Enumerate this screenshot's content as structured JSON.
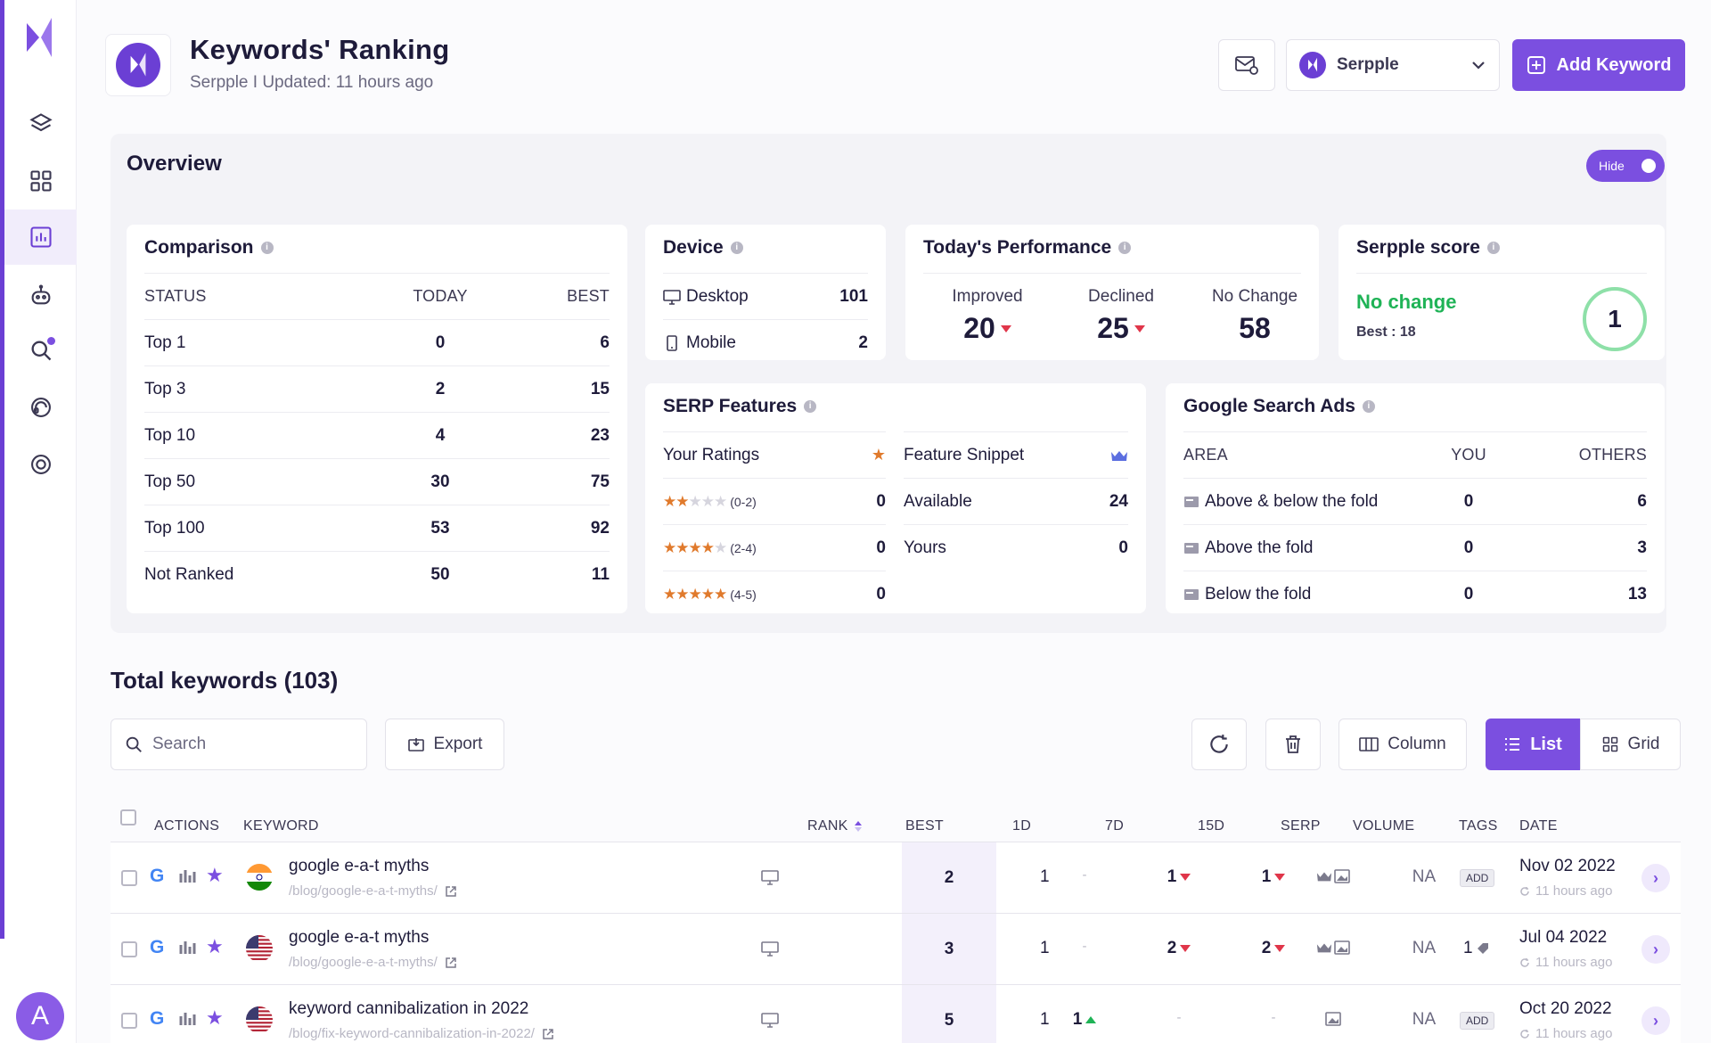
{
  "header": {
    "title": "Keywords' Ranking",
    "subtitle": "Serpple I Updated: 11 hours ago",
    "project_name": "Serpple",
    "add_keyword": "Add Keyword"
  },
  "sidebar": {
    "avatar_letter": "A",
    "items": [
      {
        "icon": "layers-icon"
      },
      {
        "icon": "grid-icon"
      },
      {
        "icon": "bar-chart-icon"
      },
      {
        "icon": "robot-icon"
      },
      {
        "icon": "search-icon"
      },
      {
        "icon": "support-icon"
      },
      {
        "icon": "target-icon"
      }
    ]
  },
  "overview": {
    "title": "Overview",
    "toggle_label": "Hide",
    "comparison": {
      "title": "Comparison",
      "headers": [
        "STATUS",
        "TODAY",
        "BEST"
      ],
      "rows": [
        {
          "status": "Top 1",
          "today": "0",
          "best": "6"
        },
        {
          "status": "Top 3",
          "today": "2",
          "best": "15"
        },
        {
          "status": "Top 10",
          "today": "4",
          "best": "23"
        },
        {
          "status": "Top 50",
          "today": "30",
          "best": "75"
        },
        {
          "status": "Top 100",
          "today": "53",
          "best": "92"
        },
        {
          "status": "Not Ranked",
          "today": "50",
          "best": "11"
        }
      ]
    },
    "device": {
      "title": "Device",
      "rows": [
        {
          "label": "Desktop",
          "value": "101"
        },
        {
          "label": "Mobile",
          "value": "2"
        }
      ]
    },
    "performance": {
      "title": "Today's Performance",
      "improved_label": "Improved",
      "improved": "20",
      "declined_label": "Declined",
      "declined": "25",
      "nochange_label": "No Change",
      "nochange": "58"
    },
    "score": {
      "title": "Serpple score",
      "status": "No change",
      "best": "Best : 18",
      "value": "1",
      "status_color": "#1fb356"
    },
    "serp": {
      "title": "SERP Features",
      "ratings_label": "Your Ratings",
      "ratings": [
        {
          "stars": 2,
          "range": "(0-2)",
          "value": "0"
        },
        {
          "stars": 4,
          "range": "(2-4)",
          "value": "0"
        },
        {
          "stars": 5,
          "range": "(4-5)",
          "value": "0"
        }
      ],
      "snippet_label": "Feature Snippet",
      "snippet_rows": [
        {
          "label": "Available",
          "value": "24"
        },
        {
          "label": "Yours",
          "value": "0"
        }
      ]
    },
    "ads": {
      "title": "Google Search Ads",
      "headers": [
        "AREA",
        "YOU",
        "OTHERS"
      ],
      "rows": [
        {
          "area": "Above & below the fold",
          "you": "0",
          "others": "6"
        },
        {
          "area": "Above the fold",
          "you": "0",
          "others": "3"
        },
        {
          "area": "Below the fold",
          "you": "0",
          "others": "13"
        }
      ]
    }
  },
  "keywords": {
    "title": "Total keywords (103)",
    "search_placeholder": "Search",
    "export": "Export",
    "column": "Column",
    "list": "List",
    "grid": "Grid",
    "headers": [
      "ACTIONS",
      "KEYWORD",
      "RANK",
      "BEST",
      "1D",
      "7D",
      "15D",
      "SERP",
      "VOLUME",
      "TAGS",
      "DATE"
    ],
    "rows": [
      {
        "keyword": "google e-a-t myths",
        "url": "/blog/google-e-a-t-myths/",
        "flag": "india",
        "rank": "2",
        "best": "1",
        "d1": "-",
        "d7": "1",
        "d7_dir": "down",
        "d15": "1",
        "d15_dir": "down",
        "volume": "NA",
        "tag": "ADD",
        "date": "Nov 02 2022",
        "updated": "11 hours ago"
      },
      {
        "keyword": "google e-a-t myths",
        "url": "/blog/google-e-a-t-myths/",
        "flag": "usa",
        "rank": "3",
        "best": "1",
        "d1": "-",
        "d7": "2",
        "d7_dir": "down",
        "d15": "2",
        "d15_dir": "down",
        "volume": "NA",
        "tag": "1",
        "date": "Jul 04 2022",
        "updated": "11 hours ago"
      },
      {
        "keyword": "keyword cannibalization in 2022",
        "url": "/blog/fix-keyword-cannibalization-in-2022/",
        "flag": "usa",
        "rank": "5",
        "best": "1",
        "d1": "1",
        "d1_dir": "up",
        "d7": "-",
        "d15": "-",
        "volume": "NA",
        "tag": "ADD",
        "date": "Oct 20 2022",
        "updated": "11 hours ago"
      }
    ]
  },
  "colors": {
    "accent": "#7b4fe0",
    "up": "#1fb356",
    "down": "#e0364a",
    "star": "#e07a2c"
  }
}
